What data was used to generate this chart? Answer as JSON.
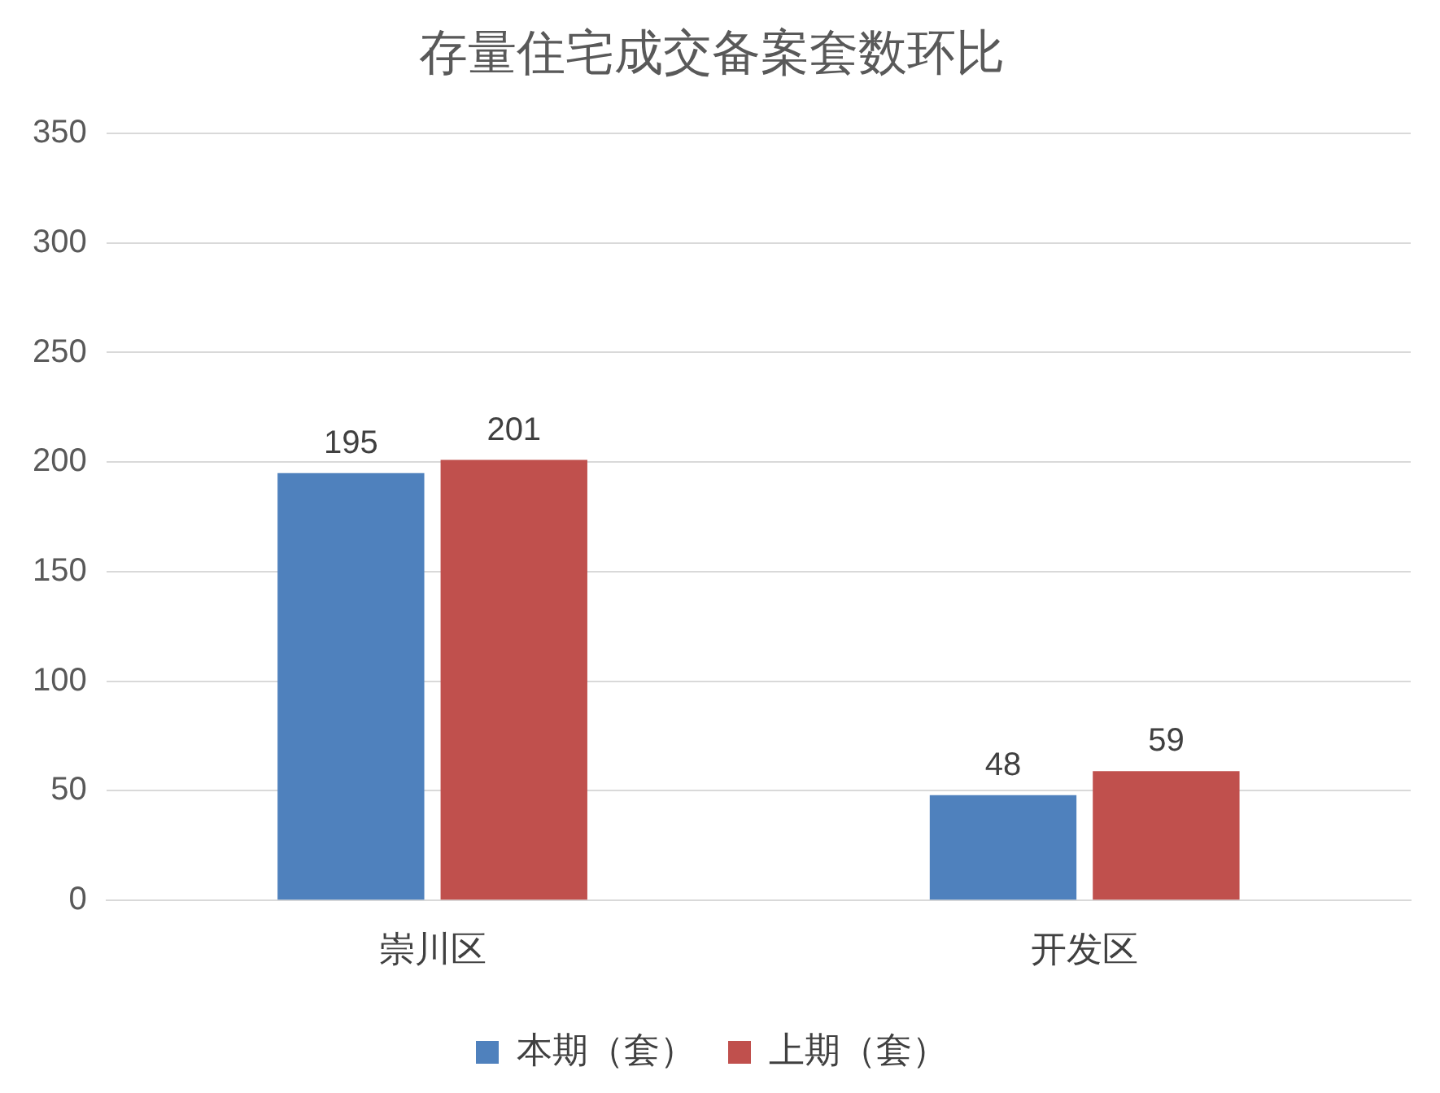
{
  "chart_data": {
    "type": "bar",
    "title": "存量住宅成交备案套数环比",
    "categories": [
      "崇川区",
      "开发区"
    ],
    "series": [
      {
        "name": "本期（套）",
        "color": "#4f81bd",
        "values": [
          195,
          48
        ]
      },
      {
        "name": "上期（套）",
        "color": "#c0504d",
        "values": [
          201,
          59
        ]
      }
    ],
    "ylim": [
      0,
      350
    ],
    "yticks": [
      0,
      50,
      100,
      150,
      200,
      250,
      300,
      350
    ],
    "grid": "y",
    "legend": "bottom",
    "data_labels": true
  }
}
